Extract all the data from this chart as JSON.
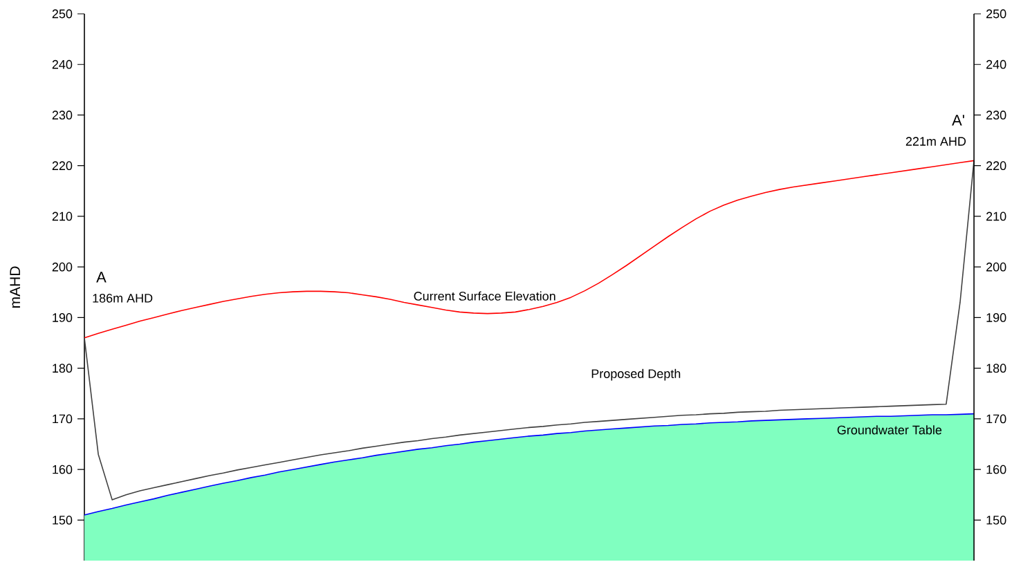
{
  "chart_data": {
    "type": "line",
    "ylabel": "mAHD",
    "categories": [
      null,
      null,
      null,
      null,
      null,
      null,
      null,
      null,
      null,
      null,
      null,
      null,
      null,
      null,
      null,
      null,
      null,
      null,
      null,
      null,
      null,
      null,
      null,
      null,
      null,
      null,
      null,
      null,
      null,
      null,
      null,
      null,
      null,
      null,
      null,
      null,
      null,
      null,
      null,
      null,
      null,
      null,
      null,
      null,
      null,
      null,
      null,
      null,
      null,
      null,
      null,
      null,
      null,
      null,
      null,
      null,
      null,
      null,
      null,
      null,
      null,
      null,
      null,
      null,
      null
    ],
    "ylim": [
      142,
      250
    ],
    "yticks": [
      150,
      160,
      170,
      180,
      190,
      200,
      210,
      220,
      230,
      240,
      250
    ],
    "y2lim": [
      142,
      250
    ],
    "y2ticks": [
      150,
      160,
      170,
      180,
      190,
      200,
      210,
      220,
      230,
      240,
      250
    ],
    "grid": false,
    "tick_labels": "y",
    "annotations": [
      "A",
      "186m AHD",
      "A'",
      "221m AHD"
    ],
    "series": [
      {
        "type": "area",
        "color": "#80ffc0",
        "values": [
          151.0,
          151.7,
          152.3,
          153.0,
          153.6,
          154.2,
          154.9,
          155.5,
          156.1,
          156.7,
          157.3,
          157.8,
          158.4,
          158.9,
          159.5,
          160.0,
          160.5,
          161.0,
          161.5,
          161.9,
          162.3,
          162.8,
          163.2,
          163.6,
          164.0,
          164.3,
          164.7,
          165.0,
          165.4,
          165.7,
          166.0,
          166.3,
          166.6,
          166.8,
          167.1,
          167.3,
          167.6,
          167.8,
          168.0,
          168.2,
          168.4,
          168.6,
          168.7,
          168.9,
          169.0,
          169.2,
          169.3,
          169.4,
          169.6,
          169.7,
          169.8,
          169.9,
          170.0,
          170.1,
          170.2,
          170.3,
          170.4,
          170.5,
          170.5,
          170.6,
          170.7,
          170.8,
          170.8,
          170.9,
          171.0
        ]
      },
      {
        "name": "Current Surface Elevation",
        "color": "#ff0000",
        "values": [
          186.0,
          186.9,
          187.7,
          188.5,
          189.3,
          190.0,
          190.7,
          191.4,
          192.0,
          192.6,
          193.2,
          193.7,
          194.2,
          194.6,
          194.9,
          195.1,
          195.2,
          195.2,
          195.1,
          194.9,
          194.5,
          194.1,
          193.6,
          193.0,
          192.5,
          192.0,
          191.5,
          191.1,
          190.9,
          190.8,
          190.9,
          191.1,
          191.6,
          192.2,
          193.0,
          194.0,
          195.3,
          196.8,
          198.5,
          200.3,
          202.2,
          204.1,
          206.0,
          207.8,
          209.5,
          211.0,
          212.2,
          213.2,
          214.0,
          214.7,
          215.3,
          215.8,
          216.2,
          216.6,
          217.0,
          217.4,
          217.8,
          218.2,
          218.6,
          219.0,
          219.4,
          219.8,
          220.2,
          220.6,
          221.0
        ]
      },
      {
        "name": "Proposed Depth",
        "color": "#404040",
        "values": [
          186.0,
          163.0,
          154.0,
          155.0,
          155.8,
          156.4,
          157.0,
          157.6,
          158.2,
          158.8,
          159.3,
          159.9,
          160.4,
          160.9,
          161.4,
          161.9,
          162.4,
          162.9,
          163.3,
          163.7,
          164.2,
          164.6,
          165.0,
          165.4,
          165.7,
          166.1,
          166.4,
          166.8,
          167.1,
          167.4,
          167.7,
          168.0,
          168.3,
          168.5,
          168.8,
          169.0,
          169.3,
          169.5,
          169.7,
          169.9,
          170.1,
          170.3,
          170.5,
          170.7,
          170.8,
          171.0,
          171.1,
          171.3,
          171.4,
          171.5,
          171.7,
          171.8,
          171.9,
          172.0,
          172.1,
          172.2,
          172.3,
          172.4,
          172.5,
          172.6,
          172.7,
          172.8,
          172.9,
          193.0,
          221.0
        ]
      },
      {
        "name": "Groundwater Table",
        "color": "#0000ff",
        "values": [
          151.0,
          151.7,
          152.3,
          153.0,
          153.6,
          154.2,
          154.9,
          155.5,
          156.1,
          156.7,
          157.3,
          157.8,
          158.4,
          158.9,
          159.5,
          160.0,
          160.5,
          161.0,
          161.5,
          161.9,
          162.3,
          162.8,
          163.2,
          163.6,
          164.0,
          164.3,
          164.7,
          165.0,
          165.4,
          165.7,
          166.0,
          166.3,
          166.6,
          166.8,
          167.1,
          167.3,
          167.6,
          167.8,
          168.0,
          168.2,
          168.4,
          168.6,
          168.7,
          168.9,
          169.0,
          169.2,
          169.3,
          169.4,
          169.6,
          169.7,
          169.8,
          169.9,
          170.0,
          170.1,
          170.2,
          170.3,
          170.4,
          170.5,
          170.5,
          170.6,
          170.7,
          170.8,
          170.8,
          170.9,
          171.0
        ]
      }
    ]
  }
}
